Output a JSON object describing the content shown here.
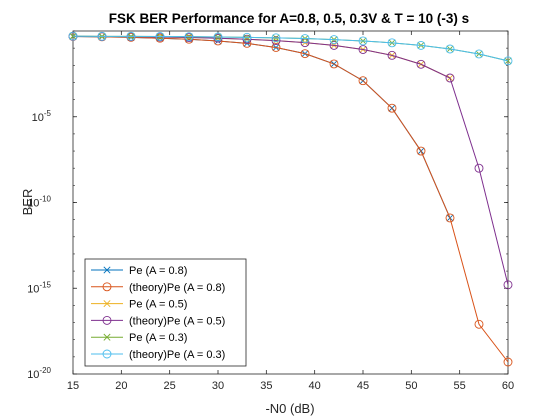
{
  "chart_data": {
    "type": "line",
    "title": "FSK BER Performance for A=0.8, 0.5, 0.3V & T = 10 (-3) s",
    "xlabel": "-N0 (dB)",
    "ylabel": "BER",
    "xlim": [
      15,
      60
    ],
    "ylim_exponent": [
      -20,
      0
    ],
    "yscale": "log",
    "x_ticks": [
      "15",
      "20",
      "25",
      "30",
      "35",
      "40",
      "45",
      "50",
      "55",
      "60"
    ],
    "y_ticks": [
      {
        "base": "10",
        "exp": "-20",
        "value_exp": -20
      },
      {
        "base": "10",
        "exp": "-15",
        "value_exp": -15
      },
      {
        "base": "10",
        "exp": "-10",
        "value_exp": -10
      },
      {
        "base": "10",
        "exp": "-5",
        "value_exp": -5
      }
    ],
    "grid": false,
    "legend_position": "bottom-left",
    "x": [
      15,
      18,
      21,
      24,
      27,
      30,
      33,
      36,
      39,
      42,
      45,
      48,
      51,
      54,
      57,
      60
    ],
    "series": [
      {
        "name": "Pe (A = 0.8)",
        "color": "#0072BD",
        "marker": "x",
        "log10_values": [
          -0.32,
          -0.34,
          -0.37,
          -0.42,
          -0.48,
          -0.58,
          -0.72,
          -0.96,
          -1.32,
          -1.92,
          -2.9,
          -4.5,
          -7.0,
          -10.9
        ]
      },
      {
        "name": "(theory)Pe (A = 0.8)",
        "color": "#D95319",
        "marker": "o",
        "log10_values": [
          -0.32,
          -0.34,
          -0.37,
          -0.42,
          -0.48,
          -0.58,
          -0.72,
          -0.96,
          -1.32,
          -1.92,
          -2.9,
          -4.5,
          -7.0,
          -10.9,
          -17.1,
          -19.3
        ]
      },
      {
        "name": "Pe (A = 0.5)",
        "color": "#EDB120",
        "marker": "x",
        "log10_values": [
          -0.31,
          -0.32,
          -0.33,
          -0.35,
          -0.38,
          -0.42,
          -0.48,
          -0.56,
          -0.68,
          -0.84,
          -1.08,
          -1.42,
          -1.94,
          -2.74
        ]
      },
      {
        "name": "(theory)Pe (A = 0.5)",
        "color": "#7E2F8E",
        "marker": "o",
        "log10_values": [
          -0.31,
          -0.32,
          -0.33,
          -0.35,
          -0.38,
          -0.42,
          -0.48,
          -0.56,
          -0.68,
          -0.84,
          -1.08,
          -1.42,
          -1.94,
          -2.74,
          -8.0,
          -14.8
        ]
      },
      {
        "name": "Pe (A = 0.3)",
        "color": "#77AC30",
        "marker": "x",
        "log10_values": [
          -0.3,
          -0.31,
          -0.31,
          -0.32,
          -0.33,
          -0.35,
          -0.37,
          -0.4,
          -0.44,
          -0.5,
          -0.58,
          -0.69,
          -0.84,
          -1.05,
          -1.34,
          -1.74
        ]
      },
      {
        "name": "(theory)Pe (A = 0.3)",
        "color": "#4DBEEE",
        "marker": "o",
        "log10_values": [
          -0.3,
          -0.31,
          -0.31,
          -0.32,
          -0.33,
          -0.35,
          -0.37,
          -0.4,
          -0.44,
          -0.5,
          -0.58,
          -0.69,
          -0.84,
          -1.05,
          -1.34,
          -1.74
        ]
      }
    ]
  }
}
